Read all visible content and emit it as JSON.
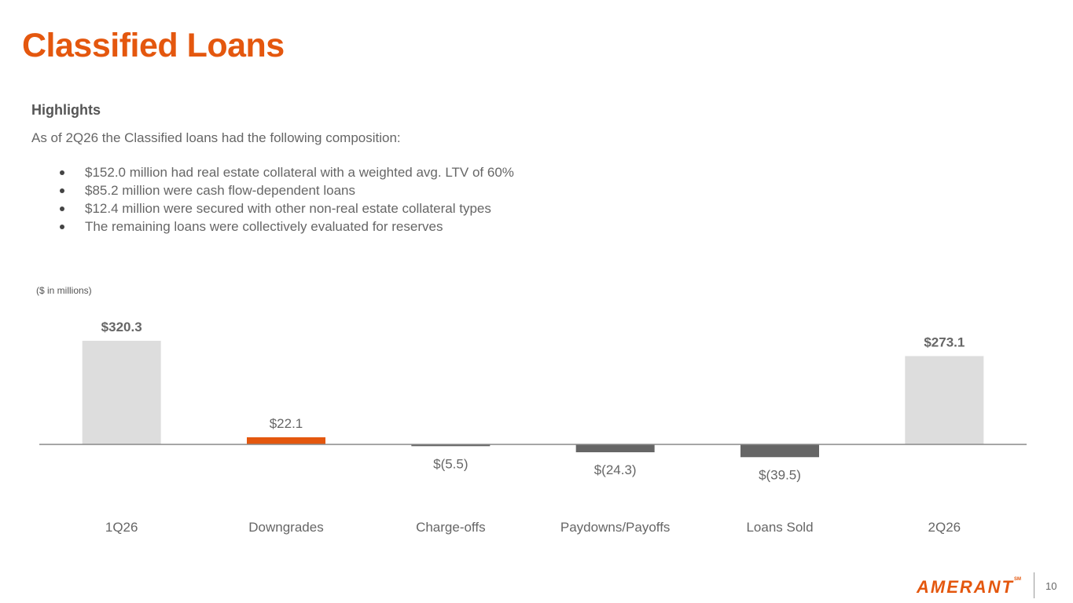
{
  "slide": {
    "title": "Classified Loans",
    "highlights_heading": "Highlights",
    "intro": "As of 2Q26 the Classified loans had the following composition:",
    "bullets": [
      "$152.0 million had real estate collateral with a weighted avg. LTV of 60%",
      "$85.2 million were cash flow-dependent loans",
      "$12.4 million were secured with other non-real estate collateral types",
      "The remaining loans were collectively evaluated for reserves"
    ],
    "units_note": "($ in millions)",
    "page_number": "10"
  },
  "brand": {
    "logo_text": "AMERANT",
    "trademark": "SM",
    "accent_color": "#e4570e"
  },
  "colors": {
    "total": "#dddddd",
    "increase": "#e4570e",
    "decrease": "#666666",
    "axis": "#888888",
    "label": "#666666",
    "total_label": "#666666"
  },
  "chart_data": {
    "type": "bar",
    "categories": [
      "1Q26",
      "Downgrades",
      "Charge-offs",
      "Paydowns/Payoffs",
      "Loans Sold",
      "2Q26"
    ],
    "values": [
      320.3,
      22.1,
      -5.5,
      -24.3,
      -39.5,
      273.1
    ],
    "bar_kinds": [
      "total",
      "increase",
      "decrease",
      "decrease",
      "decrease",
      "total"
    ],
    "data_labels": [
      "$320.3",
      "$22.1",
      "$(5.5)",
      "$(24.3)",
      "$(39.5)",
      "$273.1"
    ],
    "ylabel": "($ in millions)",
    "grid": false,
    "legend": "none"
  }
}
